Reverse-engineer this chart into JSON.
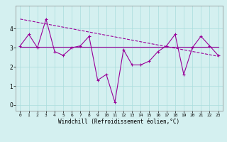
{
  "x": [
    0,
    1,
    2,
    3,
    4,
    5,
    6,
    7,
    8,
    9,
    10,
    11,
    12,
    13,
    14,
    15,
    16,
    17,
    18,
    19,
    20,
    21,
    22,
    23
  ],
  "y_line1": [
    3.1,
    3.7,
    3.0,
    4.5,
    2.8,
    2.6,
    3.0,
    3.1,
    3.6,
    1.3,
    1.6,
    0.15,
    2.9,
    2.1,
    2.1,
    2.3,
    2.8,
    3.1,
    3.7,
    1.6,
    3.0,
    3.6,
    3.1,
    2.6
  ],
  "trend_x": [
    0,
    23
  ],
  "trend_y": [
    4.5,
    2.55
  ],
  "horiz_y": 3.05,
  "line_color": "#990099",
  "bg_color": "#d4f0f0",
  "grid_color": "#aadddd",
  "xlabel": "Windchill (Refroidissement éolien,°C)",
  "xlim": [
    -0.5,
    23.5
  ],
  "ylim": [
    -0.3,
    5.2
  ],
  "yticks": [
    0,
    1,
    2,
    3,
    4
  ],
  "xticks": [
    0,
    1,
    2,
    3,
    4,
    5,
    6,
    7,
    8,
    9,
    10,
    11,
    12,
    13,
    14,
    15,
    16,
    17,
    18,
    19,
    20,
    21,
    22,
    23
  ]
}
